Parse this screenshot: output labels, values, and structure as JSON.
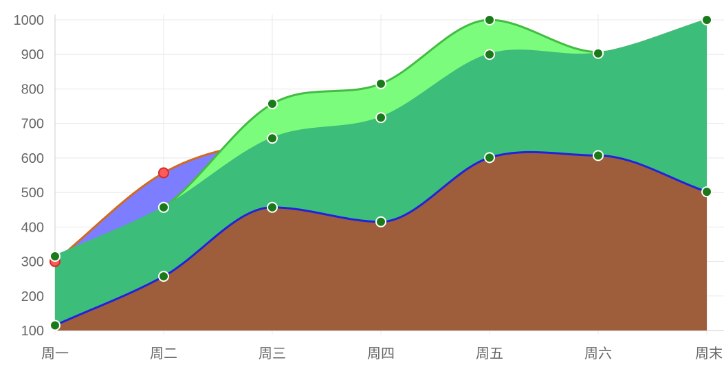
{
  "chart_data": {
    "type": "area",
    "categories": [
      "周一",
      "周二",
      "周三",
      "周四",
      "周五",
      "周六",
      "周末"
    ],
    "ylim": [
      100,
      1000
    ],
    "yticks": [
      100,
      200,
      300,
      400,
      500,
      600,
      700,
      800,
      900,
      1000
    ],
    "grid": true,
    "series": [
      {
        "values": [
          300,
          557,
          657,
          717,
          900,
          903,
          1000
        ],
        "fill": "#7d7dff",
        "line": "#d2691e",
        "point_fill": "#ff5a5a",
        "point_stroke": "#d22a2a"
      },
      {
        "values": [
          315,
          457,
          757,
          815,
          1000,
          907,
          1000
        ],
        "fill": "#7cfc7c",
        "line": "#44bb44",
        "point_fill": "#1a7a1a",
        "point_stroke": "#ffffff"
      },
      {
        "values": [
          315,
          457,
          657,
          717,
          900,
          903,
          1000
        ],
        "fill": "#3cbd7a",
        "line": "#3cbd7a",
        "point_fill": "#1a7a1a",
        "point_stroke": "#ffffff"
      },
      {
        "values": [
          115,
          257,
          457,
          415,
          601,
          607,
          502
        ],
        "fill": "#9e5e3c",
        "line": "#2222dd",
        "point_fill": "#1a7a1a",
        "point_stroke": "#ffffff"
      }
    ]
  }
}
